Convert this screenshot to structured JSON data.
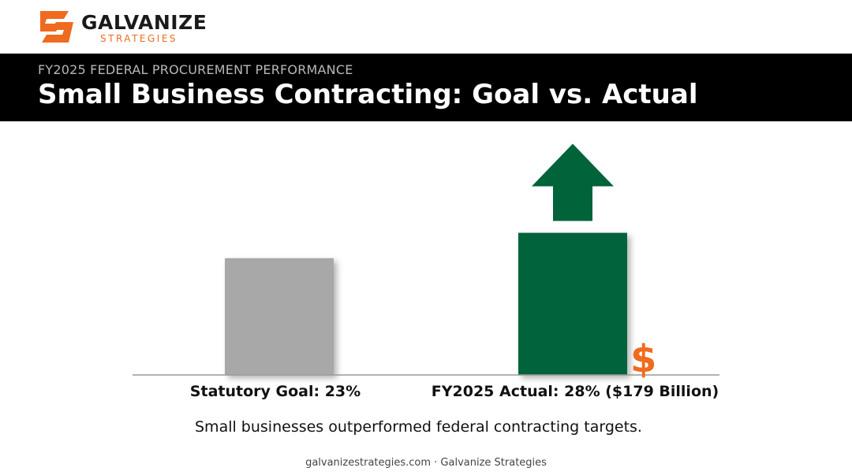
{
  "brand": {
    "name": "GALVANIZE",
    "sub": "STRATEGIES",
    "accent": "#ef6b1f"
  },
  "header": {
    "kicker": "FY2025 FEDERAL PROCUREMENT PERFORMANCE",
    "title": "Small Business Contracting: Goal vs. Actual"
  },
  "chart_data": {
    "type": "bar",
    "categories": [
      "Statutory Goal: 23%",
      "FY2025 Actual: 28% ($179 Billion)"
    ],
    "values": [
      23,
      28
    ],
    "unit": "%",
    "colors": [
      "#a8a8a8",
      "#00633a"
    ],
    "ylim": [
      0,
      45
    ],
    "grid": false,
    "legend": "none",
    "annotations": [
      {
        "type": "up-arrow",
        "category": 1,
        "color": "#00633a"
      },
      {
        "type": "symbol",
        "category": 1,
        "text": "$",
        "color": "#ef6b1f"
      }
    ]
  },
  "caption": "Small businesses outperformed federal contracting targets.",
  "footer": "galvanizestrategies.com · Galvanize Strategies"
}
